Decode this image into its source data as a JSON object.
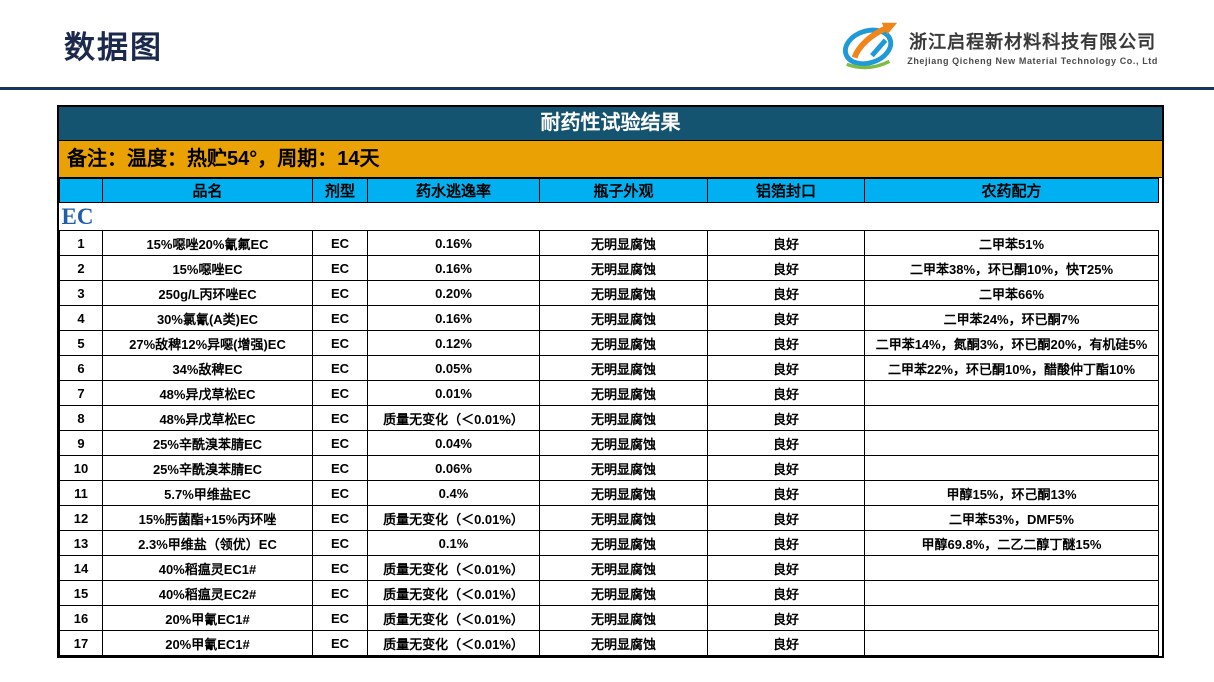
{
  "page": {
    "title": "数据图"
  },
  "logo": {
    "company_cn": "浙江启程新材料科技有限公司",
    "company_en": "Zhejiang Qicheng New Material Technology Co., Ltd"
  },
  "table": {
    "title": "耐药性试验结果",
    "note": "备注：温度：热贮54°，周期：14天",
    "columns": [
      "品名",
      "剂型",
      "药水逃逸率",
      "瓶子外观",
      "铝箔封口",
      "农药配方"
    ],
    "section": "EC",
    "rows": [
      {
        "no": "1",
        "name": "15%噁唑20%氰氟EC",
        "type": "EC",
        "escape": "0.16%",
        "bottle": "无明显腐蚀",
        "seal": "良好",
        "formula": "二甲苯51%"
      },
      {
        "no": "2",
        "name": "15%噁唑EC",
        "type": "EC",
        "escape": "0.16%",
        "bottle": "无明显腐蚀",
        "seal": "良好",
        "formula": "二甲苯38%，环已酮10%，快T25%"
      },
      {
        "no": "3",
        "name": "250g/L丙环唑EC",
        "type": "EC",
        "escape": "0.20%",
        "bottle": "无明显腐蚀",
        "seal": "良好",
        "formula": "二甲苯66%"
      },
      {
        "no": "4",
        "name": "30%氯氰(A类)EC",
        "type": "EC",
        "escape": "0.16%",
        "bottle": "无明显腐蚀",
        "seal": "良好",
        "formula": "二甲苯24%，环已酮7%"
      },
      {
        "no": "5",
        "name": "27%敌稗12%异噁(增强)EC",
        "type": "EC",
        "escape": "0.12%",
        "bottle": "无明显腐蚀",
        "seal": "良好",
        "formula": "二甲苯14%，氮酮3%，环已酮20%，有机硅5%"
      },
      {
        "no": "6",
        "name": "34%敌稗EC",
        "type": "EC",
        "escape": "0.05%",
        "bottle": "无明显腐蚀",
        "seal": "良好",
        "formula": "二甲苯22%，环已酮10%，醋酸仲丁酯10%"
      },
      {
        "no": "7",
        "name": "48%异戊草松EC",
        "type": "EC",
        "escape": "0.01%",
        "bottle": "无明显腐蚀",
        "seal": "良好",
        "formula": ""
      },
      {
        "no": "8",
        "name": "48%异戊草松EC",
        "type": "EC",
        "escape": "质量无变化（＜0.01%）",
        "bottle": "无明显腐蚀",
        "seal": "良好",
        "formula": ""
      },
      {
        "no": "9",
        "name": "25%辛酰溴苯腈EC",
        "type": "EC",
        "escape": "0.04%",
        "bottle": "无明显腐蚀",
        "seal": "良好",
        "formula": ""
      },
      {
        "no": "10",
        "name": "25%辛酰溴苯腈EC",
        "type": "EC",
        "escape": "0.06%",
        "bottle": "无明显腐蚀",
        "seal": "良好",
        "formula": ""
      },
      {
        "no": "11",
        "name": "5.7%甲维盐EC",
        "type": "EC",
        "escape": "0.4%",
        "bottle": "无明显腐蚀",
        "seal": "良好",
        "formula": "甲醇15%，环己酮13%"
      },
      {
        "no": "12",
        "name": "15%肟菌酯+15%丙环唑",
        "type": "EC",
        "escape": "质量无变化（＜0.01%）",
        "bottle": "无明显腐蚀",
        "seal": "良好",
        "formula": "二甲苯53%，DMF5%"
      },
      {
        "no": "13",
        "name": "2.3%甲维盐（领优）EC",
        "type": "EC",
        "escape": "0.1%",
        "bottle": "无明显腐蚀",
        "seal": "良好",
        "formula": "甲醇69.8%，二乙二醇丁醚15%"
      },
      {
        "no": "14",
        "name": "40%稻瘟灵EC1#",
        "type": "EC",
        "escape": "质量无变化（＜0.01%）",
        "bottle": "无明显腐蚀",
        "seal": "良好",
        "formula": ""
      },
      {
        "no": "15",
        "name": "40%稻瘟灵EC2#",
        "type": "EC",
        "escape": "质量无变化（＜0.01%）",
        "bottle": "无明显腐蚀",
        "seal": "良好",
        "formula": ""
      },
      {
        "no": "16",
        "name": "20%甲氰EC1#",
        "type": "EC",
        "escape": "质量无变化（＜0.01%）",
        "bottle": "无明显腐蚀",
        "seal": "良好",
        "formula": ""
      },
      {
        "no": "17",
        "name": "20%甲氰EC1#",
        "type": "EC",
        "escape": "质量无变化（＜0.01%）",
        "bottle": "无明显腐蚀",
        "seal": "良好",
        "formula": ""
      }
    ]
  },
  "colors": {
    "title_bar": "#155470",
    "note_bar": "#e9a104",
    "column_header": "#00b0f0",
    "ec_label": "#1f5fa8",
    "slide_title": "#1b2a4c",
    "logo_blue": "#1d9ad7",
    "logo_orange": "#f08519",
    "logo_green": "#7fba42"
  }
}
